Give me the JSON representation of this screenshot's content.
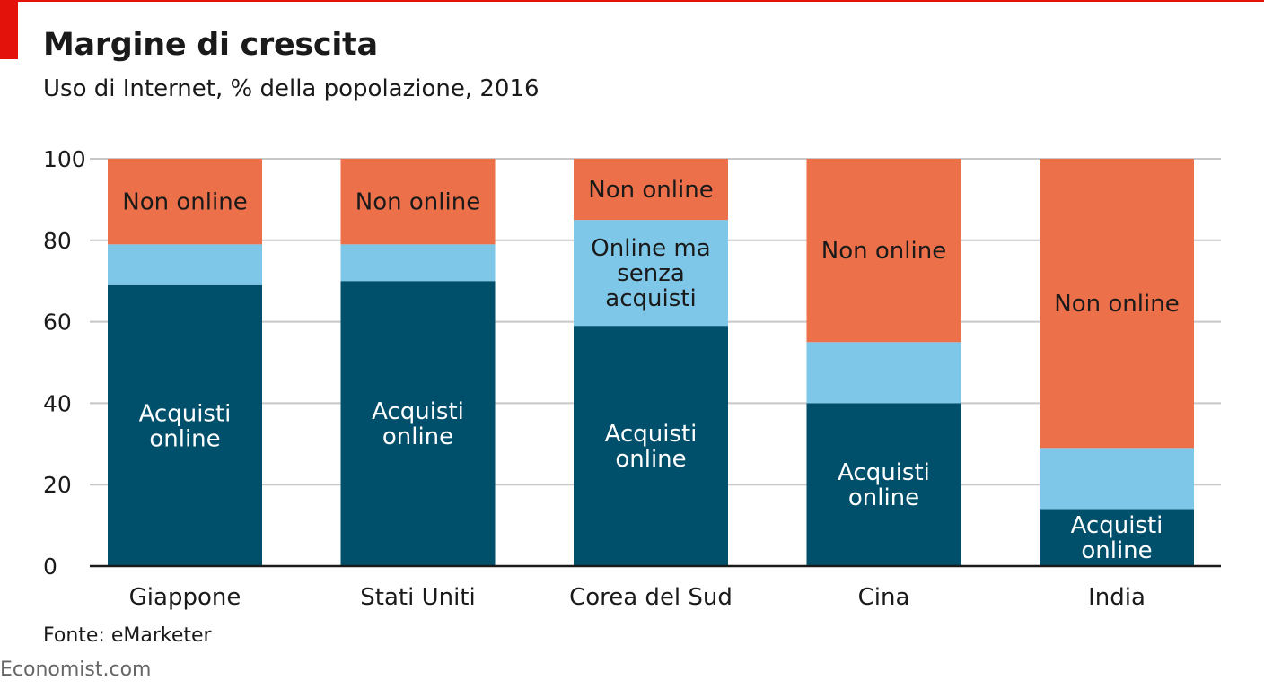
{
  "header": {
    "title": "Margine di crescita",
    "subtitle": "Uso di Internet, % della popolazione, 2016"
  },
  "footer": {
    "source": "Fonte: eMarketer",
    "brand": "Economist.com"
  },
  "colors": {
    "accent_red": "#e3120b",
    "acquisti_online": "#004f6b",
    "online_senza_acquisti": "#7fc7e8",
    "non_online": "#ec7049",
    "grid": "#c8c8c8",
    "axis": "#1a1a1a"
  },
  "chart_data": {
    "type": "bar",
    "stacked": true,
    "categories": [
      "Giappone",
      "Stati Uniti",
      "Corea del Sud",
      "Cina",
      "India"
    ],
    "yticks": [
      0,
      20,
      40,
      60,
      80,
      100
    ],
    "ylim": [
      0,
      100
    ],
    "grid": true,
    "series": [
      {
        "key": "acquisti_online",
        "values": [
          69,
          70,
          59,
          40,
          14
        ],
        "labels": [
          "Acquisti\nonline",
          "Acquisti\nonline",
          "Acquisti\nonline",
          "Acquisti\nonline",
          "Acquisti\nonline"
        ],
        "color": "#004f6b"
      },
      {
        "key": "online_senza_acquisti",
        "values": [
          10,
          9,
          26,
          15,
          15
        ],
        "labels": [
          "",
          "",
          "Online ma\nsenza\nacquisti",
          "",
          ""
        ],
        "color": "#7fc7e8"
      },
      {
        "key": "non_online",
        "values": [
          21,
          21,
          15,
          45,
          71
        ],
        "labels": [
          "Non online",
          "Non online",
          "Non online",
          "Non online",
          "Non online"
        ],
        "color": "#ec7049"
      }
    ]
  }
}
